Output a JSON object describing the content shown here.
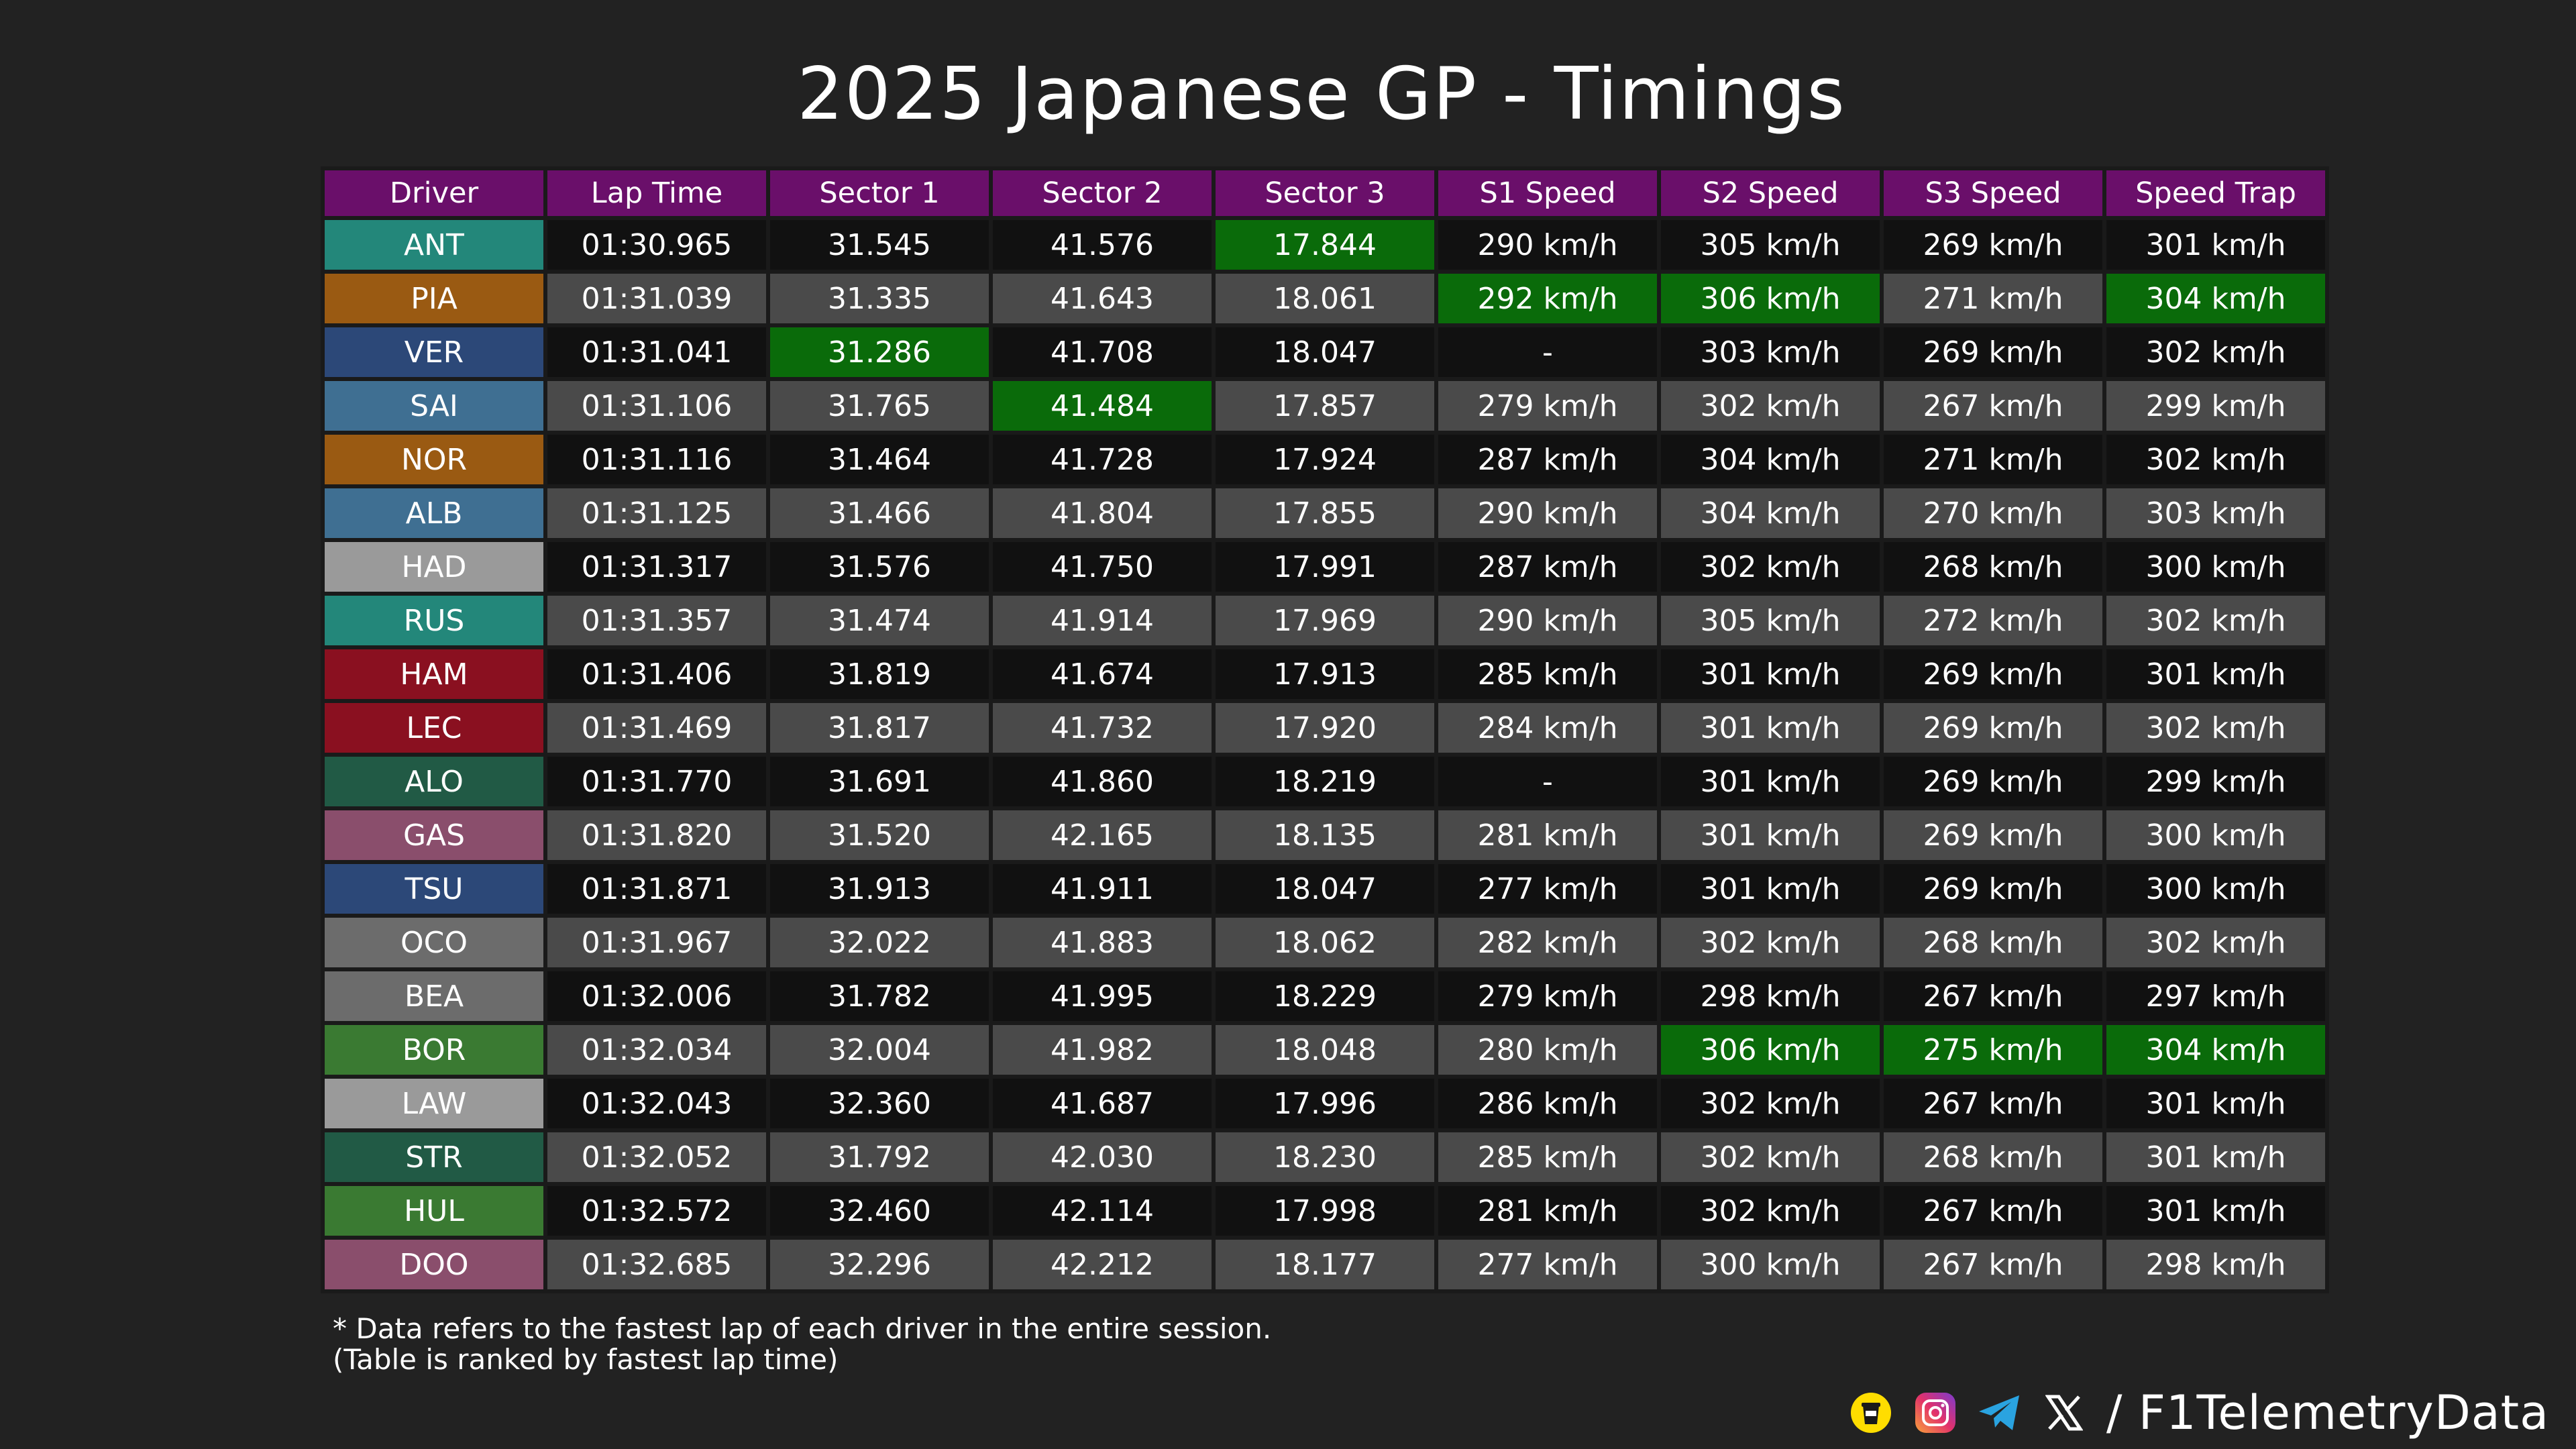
{
  "title": "2025 Japanese GP - Timings",
  "watermark": "@F1TelemetryData",
  "columns": [
    "Driver",
    "Lap Time",
    "Sector 1",
    "Sector 2",
    "Sector 3",
    "S1 Speed",
    "S2 Speed",
    "S3 Speed",
    "Speed Trap"
  ],
  "highlight_color": "#0a6b0a",
  "header_color": "#6a0f6a",
  "rows": [
    {
      "driver": "ANT",
      "team_color": "#23877a",
      "cells": [
        "01:30.965",
        "31.545",
        "41.576",
        "17.844",
        "290 km/h",
        "305 km/h",
        "269 km/h",
        "301 km/h"
      ],
      "fastest": [
        3
      ]
    },
    {
      "driver": "PIA",
      "team_color": "#9a5a12",
      "cells": [
        "01:31.039",
        "31.335",
        "41.643",
        "18.061",
        "292 km/h",
        "306 km/h",
        "271 km/h",
        "304 km/h"
      ],
      "fastest": [
        4,
        5,
        7
      ]
    },
    {
      "driver": "VER",
      "team_color": "#2c4878",
      "cells": [
        "01:31.041",
        "31.286",
        "41.708",
        "18.047",
        "-",
        "303 km/h",
        "269 km/h",
        "302 km/h"
      ],
      "fastest": [
        1
      ]
    },
    {
      "driver": "SAI",
      "team_color": "#3f6f92",
      "cells": [
        "01:31.106",
        "31.765",
        "41.484",
        "17.857",
        "279 km/h",
        "302 km/h",
        "267 km/h",
        "299 km/h"
      ],
      "fastest": [
        2
      ]
    },
    {
      "driver": "NOR",
      "team_color": "#9a5a12",
      "cells": [
        "01:31.116",
        "31.464",
        "41.728",
        "17.924",
        "287 km/h",
        "304 km/h",
        "271 km/h",
        "302 km/h"
      ],
      "fastest": []
    },
    {
      "driver": "ALB",
      "team_color": "#3f6f92",
      "cells": [
        "01:31.125",
        "31.466",
        "41.804",
        "17.855",
        "290 km/h",
        "304 km/h",
        "270 km/h",
        "303 km/h"
      ],
      "fastest": []
    },
    {
      "driver": "HAD",
      "team_color": "#9a9a9a",
      "cells": [
        "01:31.317",
        "31.576",
        "41.750",
        "17.991",
        "287 km/h",
        "302 km/h",
        "268 km/h",
        "300 km/h"
      ],
      "fastest": []
    },
    {
      "driver": "RUS",
      "team_color": "#23877a",
      "cells": [
        "01:31.357",
        "31.474",
        "41.914",
        "17.969",
        "290 km/h",
        "305 km/h",
        "272 km/h",
        "302 km/h"
      ],
      "fastest": []
    },
    {
      "driver": "HAM",
      "team_color": "#8a1020",
      "cells": [
        "01:31.406",
        "31.819",
        "41.674",
        "17.913",
        "285 km/h",
        "301 km/h",
        "269 km/h",
        "301 km/h"
      ],
      "fastest": []
    },
    {
      "driver": "LEC",
      "team_color": "#8a1020",
      "cells": [
        "01:31.469",
        "31.817",
        "41.732",
        "17.920",
        "284 km/h",
        "301 km/h",
        "269 km/h",
        "302 km/h"
      ],
      "fastest": []
    },
    {
      "driver": "ALO",
      "team_color": "#215a45",
      "cells": [
        "01:31.770",
        "31.691",
        "41.860",
        "18.219",
        "-",
        "301 km/h",
        "269 km/h",
        "299 km/h"
      ],
      "fastest": []
    },
    {
      "driver": "GAS",
      "team_color": "#8a4e6c",
      "cells": [
        "01:31.820",
        "31.520",
        "42.165",
        "18.135",
        "281 km/h",
        "301 km/h",
        "269 km/h",
        "300 km/h"
      ],
      "fastest": []
    },
    {
      "driver": "TSU",
      "team_color": "#2c4878",
      "cells": [
        "01:31.871",
        "31.913",
        "41.911",
        "18.047",
        "277 km/h",
        "301 km/h",
        "269 km/h",
        "300 km/h"
      ],
      "fastest": []
    },
    {
      "driver": "OCO",
      "team_color": "#6c6c6c",
      "cells": [
        "01:31.967",
        "32.022",
        "41.883",
        "18.062",
        "282 km/h",
        "302 km/h",
        "268 km/h",
        "302 km/h"
      ],
      "fastest": []
    },
    {
      "driver": "BEA",
      "team_color": "#6c6c6c",
      "cells": [
        "01:32.006",
        "31.782",
        "41.995",
        "18.229",
        "279 km/h",
        "298 km/h",
        "267 km/h",
        "297 km/h"
      ],
      "fastest": []
    },
    {
      "driver": "BOR",
      "team_color": "#3a7a32",
      "cells": [
        "01:32.034",
        "32.004",
        "41.982",
        "18.048",
        "280 km/h",
        "306 km/h",
        "275 km/h",
        "304 km/h"
      ],
      "fastest": [
        5,
        6,
        7
      ]
    },
    {
      "driver": "LAW",
      "team_color": "#9a9a9a",
      "cells": [
        "01:32.043",
        "32.360",
        "41.687",
        "17.996",
        "286 km/h",
        "302 km/h",
        "267 km/h",
        "301 km/h"
      ],
      "fastest": []
    },
    {
      "driver": "STR",
      "team_color": "#215a45",
      "cells": [
        "01:32.052",
        "31.792",
        "42.030",
        "18.230",
        "285 km/h",
        "302 km/h",
        "268 km/h",
        "301 km/h"
      ],
      "fastest": []
    },
    {
      "driver": "HUL",
      "team_color": "#3a7a32",
      "cells": [
        "01:32.572",
        "32.460",
        "42.114",
        "17.998",
        "281 km/h",
        "302 km/h",
        "267 km/h",
        "301 km/h"
      ],
      "fastest": []
    },
    {
      "driver": "DOO",
      "team_color": "#8a4e6c",
      "cells": [
        "01:32.685",
        "32.296",
        "42.212",
        "18.177",
        "277 km/h",
        "300 km/h",
        "267 km/h",
        "298 km/h"
      ],
      "fastest": []
    }
  ],
  "footnote": {
    "line1": "* Data refers to the fastest lap of each driver in the entire session.",
    "line2": "(Table is ranked by fastest lap time)"
  },
  "social": {
    "icons": [
      "buymeacoffee-icon",
      "instagram-icon",
      "telegram-icon",
      "x-icon"
    ],
    "handle": "/ F1TelemetryData"
  }
}
